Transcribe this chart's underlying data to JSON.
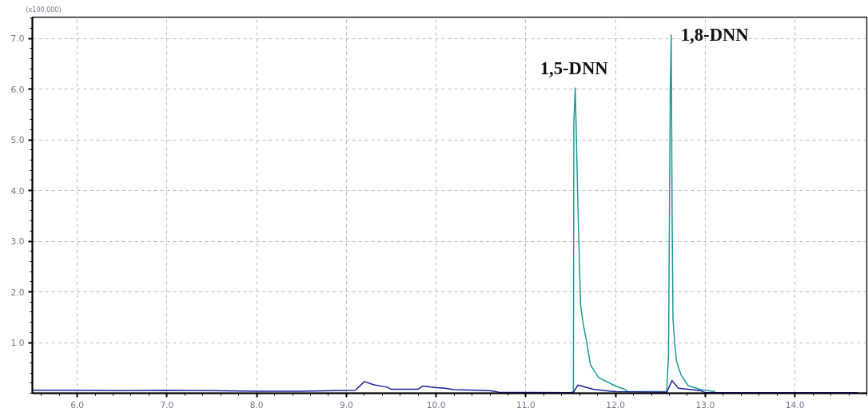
{
  "chart_data": {
    "type": "line",
    "xlim": [
      5.5,
      14.8
    ],
    "ylim": [
      0,
      7.42
    ],
    "xticks": [
      {
        "value": 6,
        "label": "6.0"
      },
      {
        "value": 7,
        "label": "7.0"
      },
      {
        "value": 8,
        "label": "8.0"
      },
      {
        "value": 9,
        "label": "9.0"
      },
      {
        "value": 10,
        "label": "10.0"
      },
      {
        "value": 11,
        "label": "11.0"
      },
      {
        "value": 12,
        "label": "12.0"
      },
      {
        "value": 13,
        "label": "13.0"
      },
      {
        "value": 14,
        "label": "14.0"
      }
    ],
    "yticks": [
      {
        "value": 1,
        "label": "1.0"
      },
      {
        "value": 2,
        "label": "2.0"
      },
      {
        "value": 3,
        "label": "3.0"
      },
      {
        "value": 4,
        "label": "4.0"
      },
      {
        "value": 5,
        "label": "5.0"
      },
      {
        "value": 6,
        "label": "6.0"
      },
      {
        "value": 7,
        "label": "7.0"
      }
    ],
    "grid": true,
    "marker": "none",
    "line_style": "solid",
    "annotations": [
      "(x100,000)",
      {
        "text": "1,5-DNN",
        "x": 11.55,
        "y": 6.02
      },
      {
        "text": "1,8-DNN",
        "x": 12.62,
        "y": 7.07
      }
    ],
    "series": [
      {
        "color": "#1a9a96",
        "x": [
          11.5,
          11.53,
          11.535,
          11.55,
          11.56,
          11.58,
          11.6,
          11.61,
          11.64,
          11.68,
          11.72,
          11.81,
          11.99,
          12.1,
          12.14,
          12.57,
          12.59,
          12.61,
          12.62,
          12.63,
          12.64,
          12.66,
          12.68,
          12.73,
          12.81,
          12.95,
          13.11
        ],
        "values": [
          0.02,
          0.02,
          5.34,
          6.02,
          5.3,
          3.7,
          2.38,
          1.74,
          1.36,
          0.99,
          0.56,
          0.31,
          0.15,
          0.08,
          0.03,
          0.03,
          0.75,
          6.02,
          7.07,
          3.54,
          1.47,
          0.95,
          0.63,
          0.36,
          0.15,
          0.07,
          0.03
        ]
      },
      {
        "color": "#1f1f9c",
        "x": [
          5.5,
          6.0,
          6.5,
          7.0,
          7.5,
          8.0,
          8.5,
          9.1,
          9.2,
          9.3,
          9.45,
          9.5,
          9.8,
          9.85,
          10.0,
          10.1,
          10.2,
          10.6,
          10.7,
          11.5,
          11.53,
          11.58,
          11.75,
          12.0,
          12.57,
          12.63,
          12.7,
          12.95,
          13.0,
          14.7
        ],
        "values": [
          0.06,
          0.06,
          0.05,
          0.06,
          0.05,
          0.04,
          0.04,
          0.06,
          0.23,
          0.17,
          0.12,
          0.08,
          0.08,
          0.14,
          0.11,
          0.1,
          0.07,
          0.05,
          0.02,
          0.01,
          0.02,
          0.16,
          0.08,
          0.03,
          0.02,
          0.25,
          0.1,
          0.05,
          0.01,
          0.01
        ]
      }
    ]
  }
}
